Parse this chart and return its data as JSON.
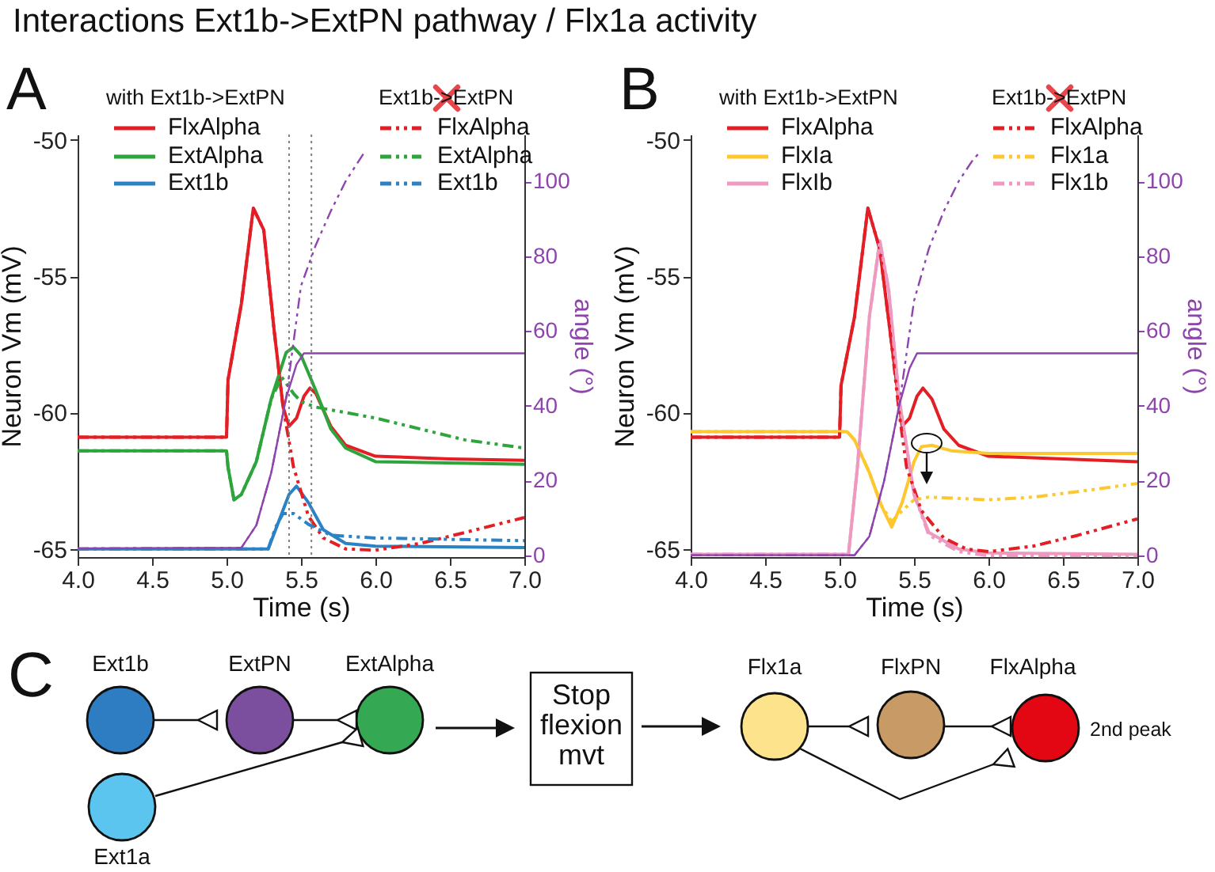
{
  "chart_data": [
    {
      "type": "line",
      "title": "Interactions Ext1b->ExtPN pathway / Flx1a activity",
      "xlabel": "Time (s)",
      "ylabel": "Neuron Vm (mV)",
      "y2label": "angle (°)",
      "annotations": [
        "A",
        "with Ext1b->ExtPN",
        "Ext1b->ExtPN"
      ],
      "legend": "top",
      "xlim": [
        4,
        7
      ],
      "xticks": [
        {
          "value": 4,
          "label": "4.0"
        },
        {
          "value": 4.5,
          "label": "4.5"
        },
        {
          "value": 5,
          "label": "5.0"
        },
        {
          "value": 5.5,
          "label": "5.5"
        },
        {
          "value": 6,
          "label": "6.0"
        },
        {
          "value": 6.5,
          "label": "6.5"
        },
        {
          "value": 7,
          "label": "7.0"
        }
      ],
      "ylim": [
        -65.3,
        -49.8
      ],
      "yticks": [
        -65,
        -60,
        -55,
        -50
      ],
      "y2lim": [
        -0.5,
        112.5
      ],
      "y2ticks": [
        0,
        20,
        40,
        60,
        80,
        100
      ],
      "ref_lines": [
        {
          "axis": "x",
          "value": 5.42,
          "color": "#808080",
          "line_style": "dotted"
        },
        {
          "axis": "x",
          "value": 5.57,
          "color": "#808080",
          "line_style": "dotted"
        }
      ],
      "series": [
        {
          "name": "FlxAlpha",
          "color": "#e31e24",
          "line_style": "solid",
          "x": [
            4,
            5,
            5.01,
            5.1,
            5.18,
            5.25,
            5.32,
            5.38,
            5.42,
            5.47,
            5.52,
            5.56,
            5.6,
            5.7,
            5.8,
            6,
            6.5,
            7
          ],
          "values": [
            -60.9,
            -60.9,
            -58.8,
            -56,
            -52.5,
            -53.3,
            -57,
            -59.8,
            -60.5,
            -60.2,
            -59.4,
            -59.1,
            -59.3,
            -60.5,
            -61.2,
            -61.6,
            -61.7,
            -61.75
          ]
        },
        {
          "name": "ExtAlpha",
          "color": "#2ea53c",
          "line_style": "solid",
          "x": [
            4,
            5,
            5.01,
            5.05,
            5.1,
            5.2,
            5.3,
            5.4,
            5.45,
            5.5,
            5.6,
            5.7,
            5.8,
            6,
            7
          ],
          "values": [
            -61.4,
            -61.4,
            -62,
            -63.2,
            -63,
            -61.8,
            -59.5,
            -57.8,
            -57.6,
            -57.9,
            -59.2,
            -60.6,
            -61.3,
            -61.8,
            -61.9
          ]
        },
        {
          "name": "Ext1b",
          "color": "#2b83c6",
          "line_style": "solid",
          "x": [
            4,
            5.28,
            5.35,
            5.42,
            5.47,
            5.55,
            5.65,
            5.8,
            6,
            7
          ],
          "values": [
            -65,
            -65,
            -64,
            -63,
            -62.7,
            -63.3,
            -64.3,
            -64.8,
            -64.9,
            -64.95
          ]
        },
        {
          "name": "FlxAlpha",
          "color": "#e31e24",
          "line_style": "dashed",
          "x": [
            4,
            5,
            5.01,
            5.1,
            5.18,
            5.25,
            5.32,
            5.38,
            5.45,
            5.55,
            5.65,
            5.8,
            6,
            6.3,
            6.6,
            7
          ],
          "values": [
            -60.9,
            -60.9,
            -58.8,
            -56,
            -52.5,
            -53.3,
            -57,
            -59.8,
            -62,
            -63.8,
            -64.6,
            -65,
            -65.05,
            -64.8,
            -64.4,
            -63.85
          ]
        },
        {
          "name": "ExtAlpha",
          "color": "#2ea53c",
          "line_style": "dashed",
          "x": [
            4,
            5,
            5.01,
            5.05,
            5.1,
            5.2,
            5.3,
            5.37,
            5.45,
            5.5,
            5.6,
            5.8,
            6,
            6.3,
            6.6,
            7
          ],
          "values": [
            -61.4,
            -61.4,
            -62,
            -63.2,
            -63,
            -61.8,
            -59.5,
            -58.7,
            -59.3,
            -59.6,
            -59.8,
            -60,
            -60.2,
            -60.6,
            -61,
            -61.3
          ]
        },
        {
          "name": "Ext1b",
          "color": "#2b83c6",
          "line_style": "dashed",
          "x": [
            4,
            5.28,
            5.33,
            5.38,
            5.45,
            5.55,
            5.7,
            6,
            7
          ],
          "values": [
            -65,
            -65,
            -64.2,
            -63.7,
            -63.7,
            -64.1,
            -64.5,
            -64.6,
            -64.7
          ]
        },
        {
          "color": "#8e44ad",
          "axis": "y2",
          "line_style": "solid",
          "x": [
            4,
            5.1,
            5.2,
            5.3,
            5.4,
            5.47,
            5.52,
            7
          ],
          "values": [
            1.8,
            2,
            8,
            22,
            42,
            51,
            54,
            54
          ]
        },
        {
          "color": "#8e44ad",
          "axis": "y2",
          "line_style": "dashed",
          "x": [
            4,
            5.1,
            5.2,
            5.3,
            5.4,
            5.5,
            5.6,
            5.7,
            5.8,
            5.93
          ],
          "values": [
            1.8,
            2,
            8,
            22,
            42,
            72,
            83,
            92,
            100,
            108
          ]
        }
      ]
    },
    {
      "type": "line",
      "xlabel": "Time (s)",
      "ylabel": "Neuron Vm (mV)",
      "y2label": "angle (°)",
      "annotations": [
        "B",
        "with Ext1b->ExtPN",
        "Ext1b->ExtPN"
      ],
      "legend": "top",
      "xlim": [
        4,
        7
      ],
      "xticks": [
        {
          "value": 4,
          "label": "4.0"
        },
        {
          "value": 4.5,
          "label": "4.5"
        },
        {
          "value": 5,
          "label": "5.0"
        },
        {
          "value": 5.5,
          "label": "5.5"
        },
        {
          "value": 6,
          "label": "6.0"
        },
        {
          "value": 6.5,
          "label": "6.5"
        },
        {
          "value": 7,
          "label": "7.0"
        }
      ],
      "ylim": [
        -65.3,
        -49.8
      ],
      "yticks": [
        -65,
        -60,
        -55,
        -50
      ],
      "y2lim": [
        -0.5,
        112.5
      ],
      "y2ticks": [
        0,
        20,
        40,
        60,
        80,
        100
      ],
      "series": [
        {
          "name": "FlxAlpha",
          "color": "#e31e24",
          "line_style": "solid",
          "x": [
            4,
            5,
            5.01,
            5.1,
            5.19,
            5.27,
            5.35,
            5.42,
            5.47,
            5.52,
            5.56,
            5.62,
            5.7,
            5.8,
            6,
            7
          ],
          "values": [
            -60.9,
            -60.9,
            -59,
            -56.5,
            -52.5,
            -54,
            -57.5,
            -60.5,
            -60.2,
            -59.4,
            -59.1,
            -59.5,
            -60.6,
            -61.2,
            -61.6,
            -61.8
          ]
        },
        {
          "name": "FlxIa",
          "color": "#fdc82f",
          "line_style": "solid",
          "x": [
            4,
            5.05,
            5.1,
            5.2,
            5.28,
            5.35,
            5.42,
            5.5,
            5.55,
            5.62,
            5.75,
            6,
            7
          ],
          "values": [
            -60.7,
            -60.7,
            -61,
            -62.2,
            -63.4,
            -64.2,
            -63.3,
            -61.8,
            -61.25,
            -61.2,
            -61.4,
            -61.5,
            -61.5
          ]
        },
        {
          "name": "FlxIb",
          "color": "#ee9ac0",
          "line_style": "solid",
          "x": [
            4,
            5.06,
            5.12,
            5.2,
            5.27,
            5.33,
            5.4,
            5.5,
            5.6,
            5.8,
            6,
            7
          ],
          "values": [
            -65.2,
            -65.2,
            -62,
            -56.5,
            -53.7,
            -55.5,
            -59.5,
            -63,
            -64.4,
            -65,
            -65.15,
            -65.2
          ]
        },
        {
          "name": "FlxAlpha",
          "color": "#e31e24",
          "line_style": "dashed",
          "x": [
            4,
            5,
            5.01,
            5.1,
            5.19,
            5.27,
            5.35,
            5.4,
            5.45,
            5.55,
            5.7,
            5.85,
            6,
            6.3,
            6.6,
            7
          ],
          "values": [
            -60.9,
            -60.9,
            -59,
            -56.5,
            -52.5,
            -54,
            -57.5,
            -60,
            -62,
            -63.6,
            -64.6,
            -65,
            -65.1,
            -64.9,
            -64.5,
            -63.9
          ]
        },
        {
          "name": "Flx1a",
          "color": "#fdc82f",
          "line_style": "dashed",
          "x": [
            4,
            5.05,
            5.1,
            5.2,
            5.28,
            5.35,
            5.42,
            5.5,
            5.6,
            6,
            6.3,
            6.6,
            7
          ],
          "values": [
            -60.7,
            -60.7,
            -61,
            -62.2,
            -63.4,
            -64,
            -63.6,
            -63.2,
            -63.1,
            -63.2,
            -63.1,
            -62.9,
            -62.6
          ]
        },
        {
          "name": "Flx1b",
          "color": "#ee9ac0",
          "line_style": "dashed",
          "x": [
            4,
            5.06,
            5.12,
            5.2,
            5.27,
            5.33,
            5.4,
            5.5,
            5.6,
            5.8,
            6,
            7
          ],
          "values": [
            -65.2,
            -65.2,
            -62,
            -56.5,
            -53.7,
            -55.5,
            -59.5,
            -63,
            -64.5,
            -65.1,
            -65.25,
            -65.25
          ]
        },
        {
          "color": "#8e44ad",
          "axis": "y2",
          "line_style": "solid",
          "x": [
            4,
            5.1,
            5.2,
            5.3,
            5.4,
            5.47,
            5.52,
            7
          ],
          "values": [
            0,
            0,
            5,
            20,
            40,
            50,
            54,
            54
          ]
        },
        {
          "color": "#8e44ad",
          "axis": "y2",
          "line_style": "dashed",
          "x": [
            4,
            5.1,
            5.2,
            5.3,
            5.4,
            5.5,
            5.6,
            5.7,
            5.8,
            5.9,
            5.95
          ],
          "values": [
            0,
            0,
            5,
            20,
            40,
            68,
            82,
            92,
            100,
            106,
            108
          ]
        }
      ]
    },
    {
      "type": "other",
      "annotations": [
        "C",
        "Ext1b",
        "ExtPN",
        "ExtAlpha",
        "Ext1a",
        "Stop flexion mvt",
        "Flx1a",
        "FlxPN",
        "FlxAlpha",
        "2nd peak"
      ]
    }
  ]
}
